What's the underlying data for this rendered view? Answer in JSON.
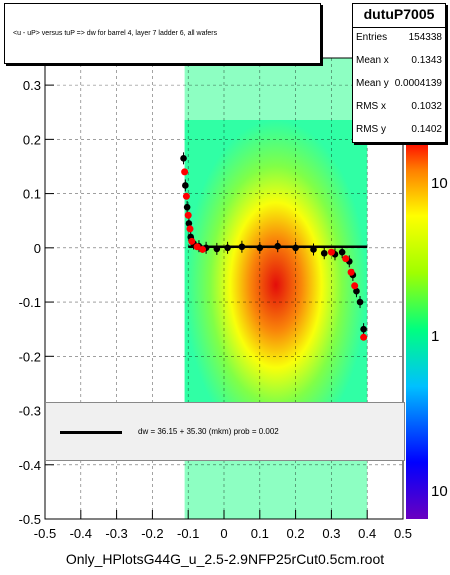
{
  "chart_data": {
    "type": "scatter",
    "title": "<u - uP>       versus  tuP =>  dw for barrel 4, layer 7 ladder 6, all wafers",
    "xlim": [
      -0.5,
      0.5
    ],
    "ylim": [
      -0.5,
      0.35
    ],
    "x_ticks": [
      "-0.5",
      "-0.4",
      "-0.3",
      "-0.2",
      "-0.1",
      "0",
      "0.1",
      "0.2",
      "0.3",
      "0.4",
      "0.5"
    ],
    "y_ticks": [
      "-0.5",
      "-0.4",
      "-0.3",
      "-0.2",
      "-0.1",
      "0",
      "0.1",
      "0.2",
      "0.3"
    ],
    "colorbar_ticks": [
      "10",
      "1",
      "10"
    ],
    "colorbar_scale": "log",
    "heatmap_x_range": [
      -0.11,
      0.4
    ],
    "profile_black": [
      {
        "x": -0.113,
        "y": 0.165
      },
      {
        "x": -0.108,
        "y": 0.115
      },
      {
        "x": -0.103,
        "y": 0.075
      },
      {
        "x": -0.098,
        "y": 0.045
      },
      {
        "x": -0.093,
        "y": 0.02
      },
      {
        "x": -0.085,
        "y": 0.008
      },
      {
        "x": -0.07,
        "y": 0.003
      },
      {
        "x": -0.05,
        "y": 0.0
      },
      {
        "x": -0.02,
        "y": -0.002
      },
      {
        "x": 0.01,
        "y": 0.0
      },
      {
        "x": 0.05,
        "y": 0.002
      },
      {
        "x": 0.1,
        "y": 0.0
      },
      {
        "x": 0.15,
        "y": 0.003
      },
      {
        "x": 0.2,
        "y": 0.0
      },
      {
        "x": 0.25,
        "y": -0.003
      },
      {
        "x": 0.28,
        "y": -0.01
      },
      {
        "x": 0.31,
        "y": -0.012
      },
      {
        "x": 0.33,
        "y": -0.008
      },
      {
        "x": 0.35,
        "y": -0.025
      },
      {
        "x": 0.36,
        "y": -0.05
      },
      {
        "x": 0.37,
        "y": -0.08
      },
      {
        "x": 0.38,
        "y": -0.1
      },
      {
        "x": 0.39,
        "y": -0.15
      }
    ],
    "profile_red": [
      {
        "x": -0.11,
        "y": 0.14
      },
      {
        "x": -0.105,
        "y": 0.095
      },
      {
        "x": -0.1,
        "y": 0.06
      },
      {
        "x": -0.095,
        "y": 0.035
      },
      {
        "x": -0.09,
        "y": 0.012
      },
      {
        "x": -0.075,
        "y": 0.002
      },
      {
        "x": -0.06,
        "y": -0.003
      },
      {
        "x": 0.3,
        "y": -0.008
      },
      {
        "x": 0.34,
        "y": -0.02
      },
      {
        "x": 0.355,
        "y": -0.045
      },
      {
        "x": 0.365,
        "y": -0.07
      },
      {
        "x": 0.39,
        "y": -0.165
      }
    ],
    "fit_line": {
      "x": [
        -0.1,
        0.4
      ],
      "y": [
        0.002,
        0.002
      ]
    }
  },
  "stats": {
    "name": "dutuP7005",
    "rows": [
      {
        "key": "Entries",
        "value": "154338"
      },
      {
        "key": "Mean x",
        "value": "0.1343"
      },
      {
        "key": "Mean y",
        "value": "0.0004139"
      },
      {
        "key": "RMS x",
        "value": "0.1032"
      },
      {
        "key": "RMS y",
        "value": "0.1402"
      }
    ]
  },
  "fit_legend": "dw =   36.15 + 35.30 (mkm) prob = 0.002",
  "footer": "Only_HPlotsG44G_u_2.5-2.9NFP25rCut0.5cm.root",
  "colors": {
    "fit": "#000000",
    "profile_red": "#ff0000",
    "profile_black": "#000000"
  }
}
